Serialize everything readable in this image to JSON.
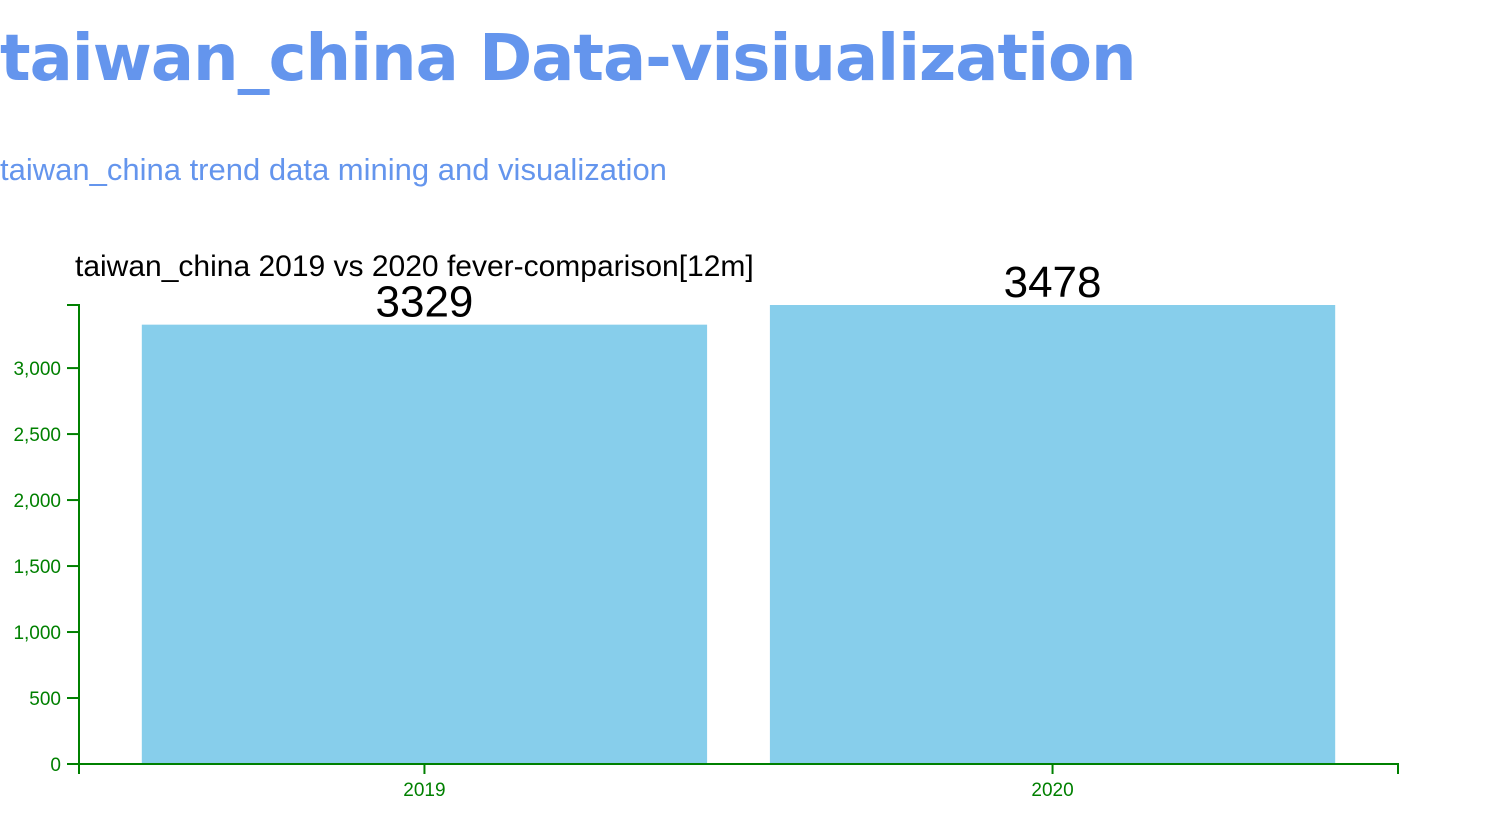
{
  "header": {
    "title": "taiwan_china Data-visiualization",
    "subtitle": "taiwan_china trend data mining and visualization"
  },
  "colors": {
    "heading": "#6495ed",
    "bar": "#87ceeb",
    "axis": "#008000",
    "text": "#000000"
  },
  "chart_data": {
    "type": "bar",
    "title": "taiwan_china 2019 vs 2020 fever-comparison[12m]",
    "categories": [
      "2019",
      "2020"
    ],
    "values": [
      3329,
      3478
    ],
    "data_labels": [
      "3329",
      "3478"
    ],
    "xlabel": "",
    "ylabel": "",
    "ylim": [
      0,
      3478
    ],
    "yticks": [
      0,
      500,
      1000,
      1500,
      2000,
      2500,
      3000
    ],
    "ytick_labels": [
      "0",
      "500",
      "1,000",
      "1,500",
      "2,000",
      "2,500",
      "3,000"
    ],
    "grid": false,
    "legend": "none"
  }
}
